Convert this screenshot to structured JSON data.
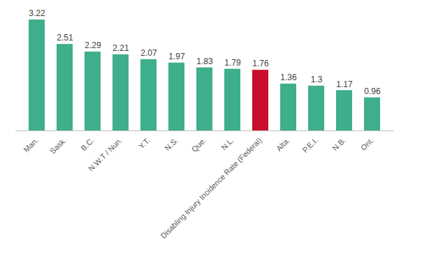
{
  "chart_data": {
    "type": "bar",
    "categories": [
      "Man.",
      "Sask.",
      "B.C.",
      "N.W.T / Nun.",
      "Y.T.",
      "N.S.",
      "Que.",
      "N.L.",
      "Disabling Injury Incidence Rate (Federal)",
      "Alta.",
      "P.E.I.",
      "N.B.",
      "Ont."
    ],
    "values": [
      3.22,
      2.51,
      2.29,
      2.21,
      2.07,
      1.97,
      1.83,
      1.79,
      1.76,
      1.36,
      1.3,
      1.17,
      0.96
    ],
    "colors": [
      "#3fae8c",
      "#3fae8c",
      "#3fae8c",
      "#3fae8c",
      "#3fae8c",
      "#3fae8c",
      "#3fae8c",
      "#3fae8c",
      "#c8102e",
      "#3fae8c",
      "#3fae8c",
      "#3fae8c",
      "#3fae8c"
    ],
    "ylim": [
      0,
      3.22
    ],
    "data_labels": true,
    "tick_labels": "x",
    "grid": false
  }
}
